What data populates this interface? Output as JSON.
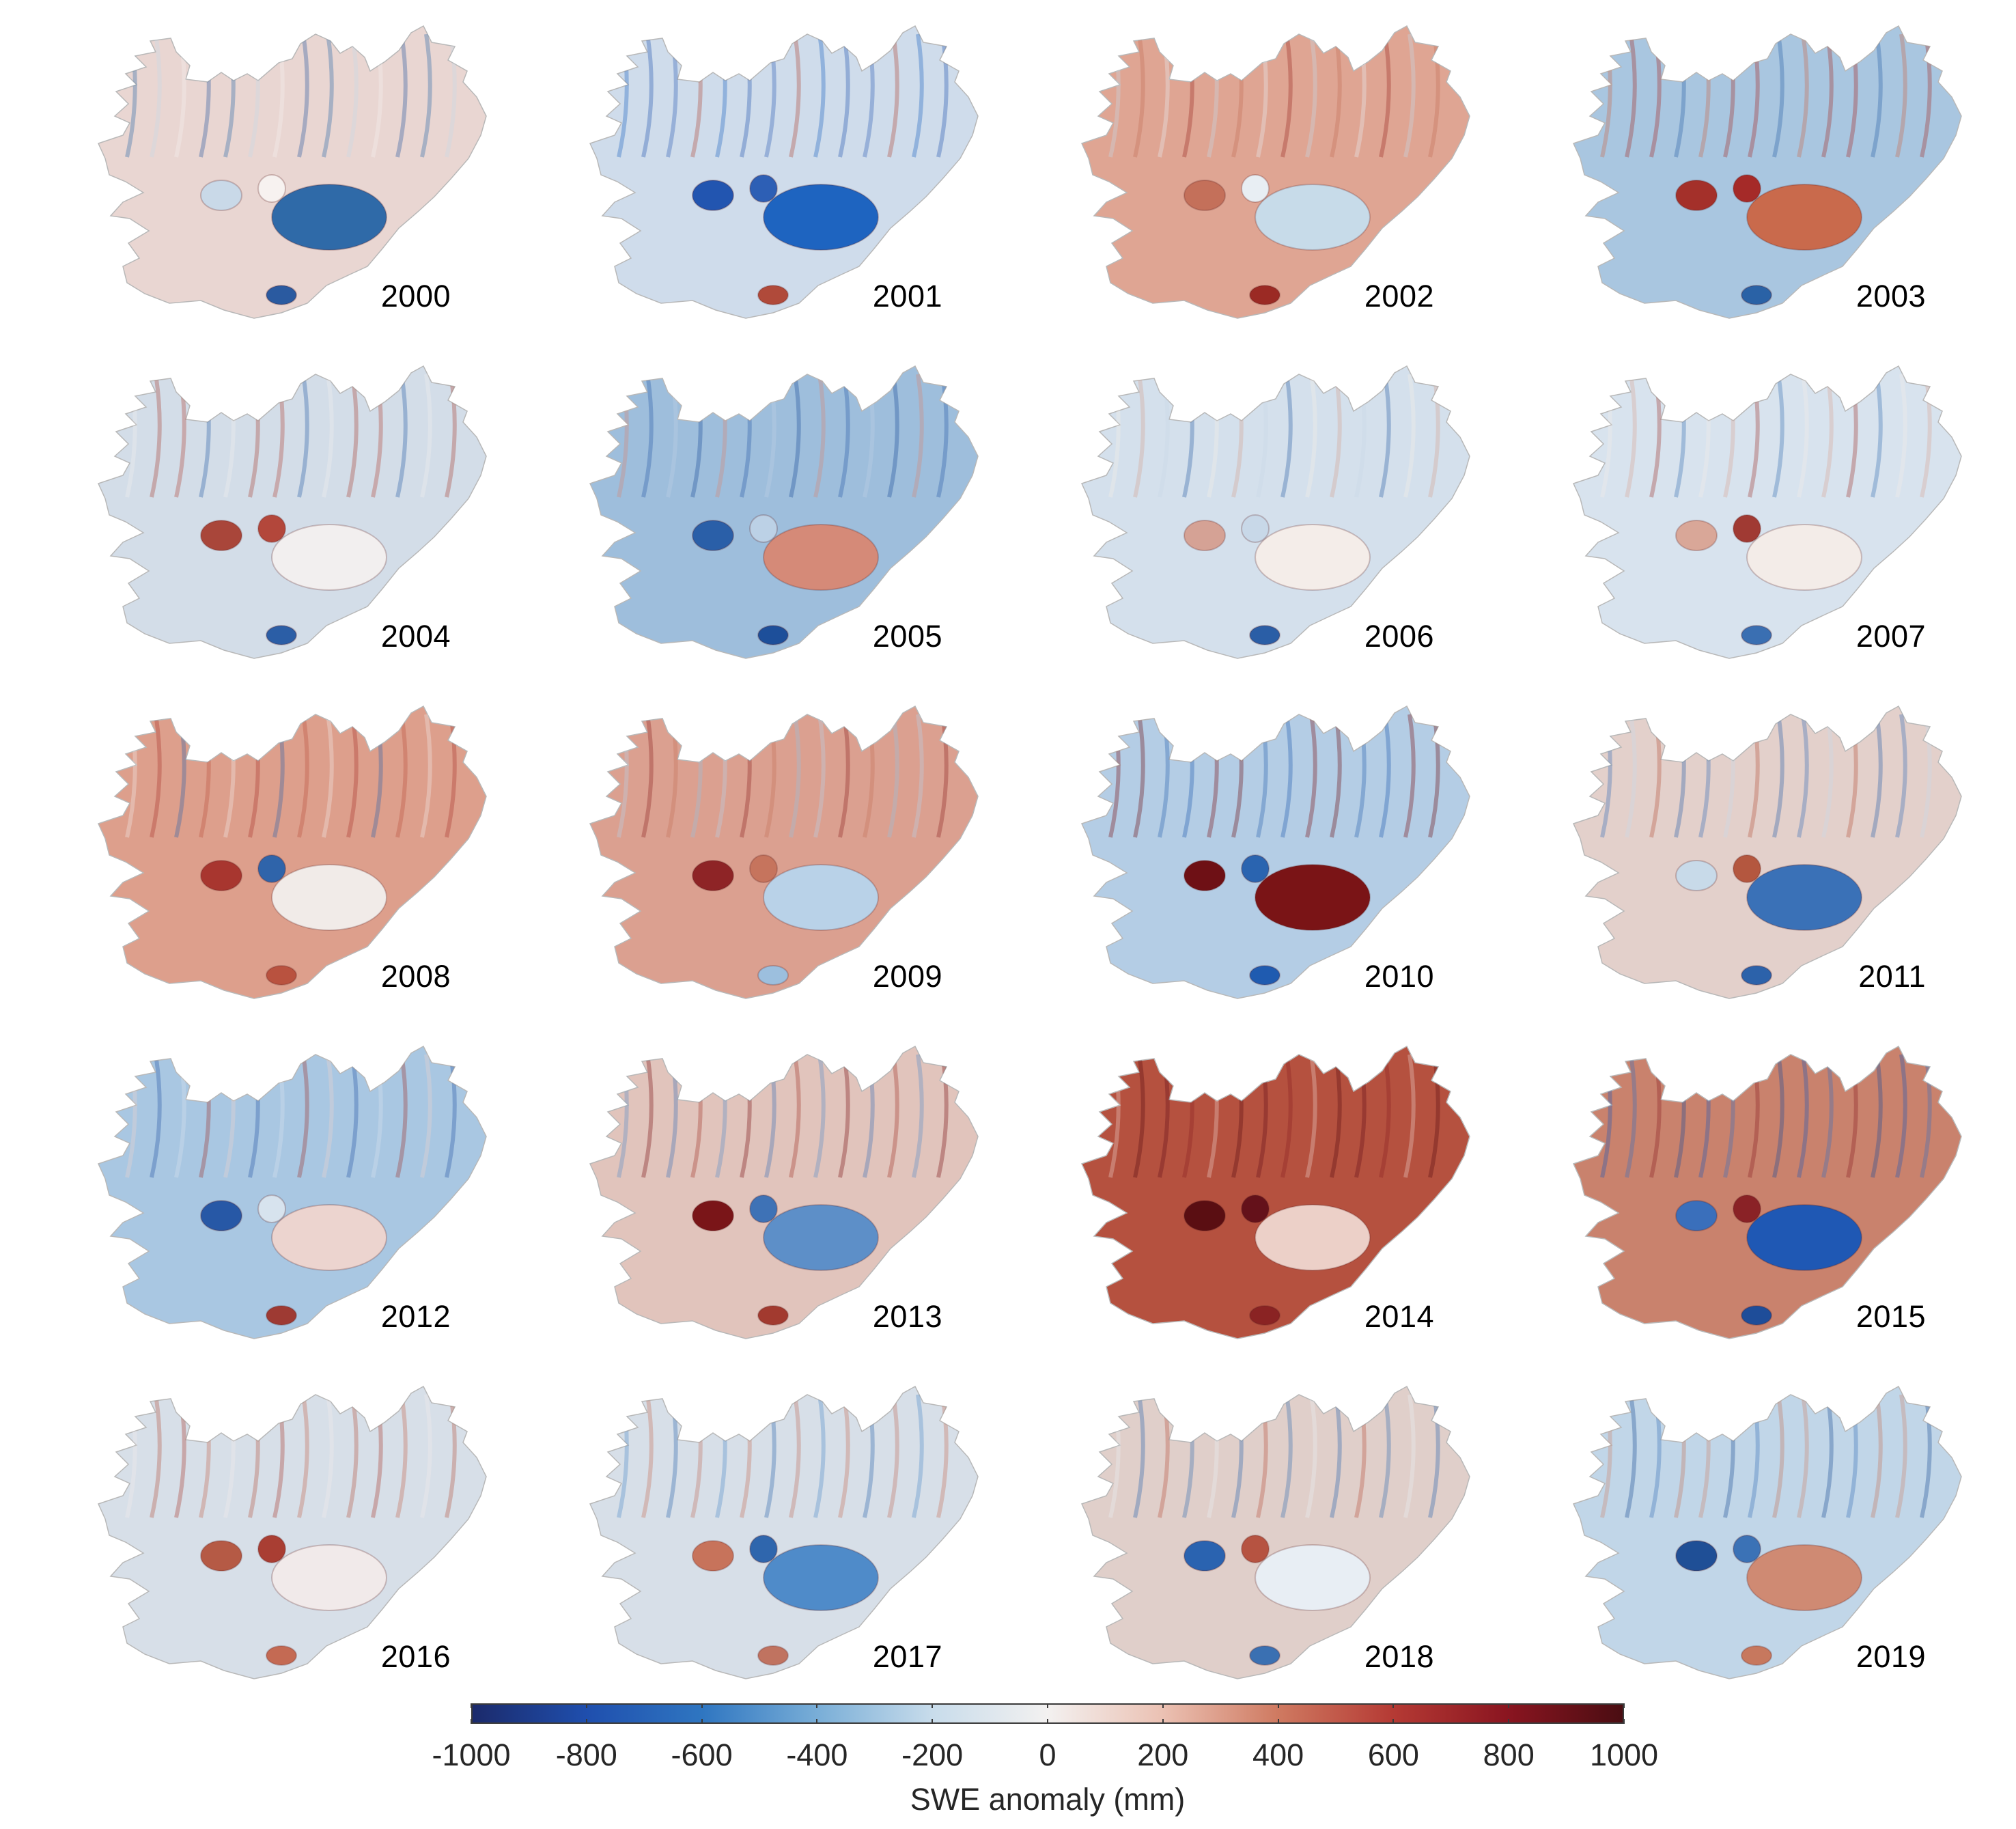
{
  "figure": {
    "panels": [
      {
        "year": "2000",
        "base": "#e9d6d2",
        "patches": [
          {
            "c": "#2f6aa8"
          },
          {
            "c": "#c9d9e8"
          },
          {
            "c": "#f7f2f0"
          },
          {
            "c": "#2a5aa0"
          }
        ]
      },
      {
        "year": "2001",
        "base": "#cfdceb",
        "patches": [
          {
            "c": "#1e64c0"
          },
          {
            "c": "#2255b0"
          },
          {
            "c": "#2d5fb5"
          },
          {
            "c": "#b04a3a"
          }
        ]
      },
      {
        "year": "2002",
        "base": "#dfa593",
        "patches": [
          {
            "c": "#c7dbe9"
          },
          {
            "c": "#c4705a"
          },
          {
            "c": "#e8eef3"
          },
          {
            "c": "#9b2a24"
          }
        ]
      },
      {
        "year": "2003",
        "base": "#a9c6e0",
        "patches": [
          {
            "c": "#c96a4c"
          },
          {
            "c": "#a4302a"
          },
          {
            "c": "#a52a28"
          },
          {
            "c": "#2a62a6"
          }
        ]
      },
      {
        "year": "2004",
        "base": "#d3dde8",
        "patches": [
          {
            "c": "#f2efef"
          },
          {
            "c": "#a9463a"
          },
          {
            "c": "#b3473b"
          },
          {
            "c": "#2b5ea6"
          }
        ]
      },
      {
        "year": "2005",
        "base": "#9ebedc",
        "patches": [
          {
            "c": "#d58a78"
          },
          {
            "c": "#2a5fa8"
          },
          {
            "c": "#bcd1e6"
          },
          {
            "c": "#1d4f9a"
          }
        ]
      },
      {
        "year": "2006",
        "base": "#d4e0ec",
        "patches": [
          {
            "c": "#f4ede9"
          },
          {
            "c": "#d5a295"
          },
          {
            "c": "#c8d8e8"
          },
          {
            "c": "#2a5ea6"
          }
        ]
      },
      {
        "year": "2007",
        "base": "#d8e3ee",
        "patches": [
          {
            "c": "#f3ece8"
          },
          {
            "c": "#d9a798"
          },
          {
            "c": "#a03a33"
          },
          {
            "c": "#3a6fb2"
          }
        ]
      },
      {
        "year": "2008",
        "base": "#dd9f8c",
        "patches": [
          {
            "c": "#f1ebe8"
          },
          {
            "c": "#a8362f"
          },
          {
            "c": "#2f64aa"
          },
          {
            "c": "#b9523f"
          }
        ]
      },
      {
        "year": "2009",
        "base": "#dba090",
        "patches": [
          {
            "c": "#b9d2e8"
          },
          {
            "c": "#8e2426"
          },
          {
            "c": "#c6745d"
          },
          {
            "c": "#9cbfde"
          }
        ]
      },
      {
        "year": "2010",
        "base": "#b4cde5",
        "patches": [
          {
            "c": "#7a1416"
          },
          {
            "c": "#6e1015"
          },
          {
            "c": "#2a64b0"
          },
          {
            "c": "#1f5bb0"
          }
        ]
      },
      {
        "year": "2011",
        "base": "#e3d0cb",
        "patches": [
          {
            "c": "#3a71b7"
          },
          {
            "c": "#c8dae9"
          },
          {
            "c": "#b4573f"
          },
          {
            "c": "#2c62aa"
          }
        ]
      },
      {
        "year": "2012",
        "base": "#a9c7e2",
        "patches": [
          {
            "c": "#ecd4cf"
          },
          {
            "c": "#2758a6"
          },
          {
            "c": "#d7e3ee"
          },
          {
            "c": "#9e3a33"
          }
        ]
      },
      {
        "year": "2013",
        "base": "#e1c4bc",
        "patches": [
          {
            "c": "#5d8fc8"
          },
          {
            "c": "#7a1518"
          },
          {
            "c": "#3e72b6"
          },
          {
            "c": "#a23a2f"
          }
        ]
      },
      {
        "year": "2014",
        "base": "#b5513f",
        "patches": [
          {
            "c": "#ecd0c8"
          },
          {
            "c": "#5a0e12"
          },
          {
            "c": "#64111a"
          },
          {
            "c": "#8a2323"
          }
        ]
      },
      {
        "year": "2015",
        "base": "#c9826d",
        "patches": [
          {
            "c": "#1f58b4"
          },
          {
            "c": "#3a6fbb"
          },
          {
            "c": "#8a2226"
          },
          {
            "c": "#1e4d99"
          }
        ]
      },
      {
        "year": "2016",
        "base": "#d7dfe8",
        "patches": [
          {
            "c": "#f1eaea"
          },
          {
            "c": "#b55a45"
          },
          {
            "c": "#a93e33"
          },
          {
            "c": "#c46a53"
          }
        ]
      },
      {
        "year": "2017",
        "base": "#d7dfe8",
        "patches": [
          {
            "c": "#4f8bc9"
          },
          {
            "c": "#c7735b"
          },
          {
            "c": "#2f66ad"
          },
          {
            "c": "#c07360"
          }
        ]
      },
      {
        "year": "2018",
        "base": "#e0cfca",
        "patches": [
          {
            "c": "#e8eef4"
          },
          {
            "c": "#2a63b0"
          },
          {
            "c": "#b65341"
          },
          {
            "c": "#3a70b2"
          }
        ]
      },
      {
        "year": "2019",
        "base": "#c1d6e8",
        "patches": [
          {
            "c": "#cf8a73"
          },
          {
            "c": "#1f4f96"
          },
          {
            "c": "#3b72b6"
          },
          {
            "c": "#c7785e"
          }
        ]
      }
    ]
  },
  "colorbar": {
    "label": "SWE anomaly (mm)",
    "min": -1000,
    "max": 1000,
    "ticks": [
      {
        "value": -1000,
        "label": "-1000"
      },
      {
        "value": -800,
        "label": "-800"
      },
      {
        "value": -600,
        "label": "-600"
      },
      {
        "value": -400,
        "label": "-400"
      },
      {
        "value": -200,
        "label": "-200"
      },
      {
        "value": 0,
        "label": "0"
      },
      {
        "value": 200,
        "label": "200"
      },
      {
        "value": 400,
        "label": "400"
      },
      {
        "value": 600,
        "label": "600"
      },
      {
        "value": 800,
        "label": "800"
      },
      {
        "value": 1000,
        "label": "1000"
      }
    ],
    "stops": [
      "#1b2a6b",
      "#1f4fae",
      "#2f76c1",
      "#79aed7",
      "#c8dceb",
      "#f3f1f0",
      "#ebc1b3",
      "#cf7a61",
      "#b53a34",
      "#8a1520",
      "#4a0d12"
    ]
  }
}
